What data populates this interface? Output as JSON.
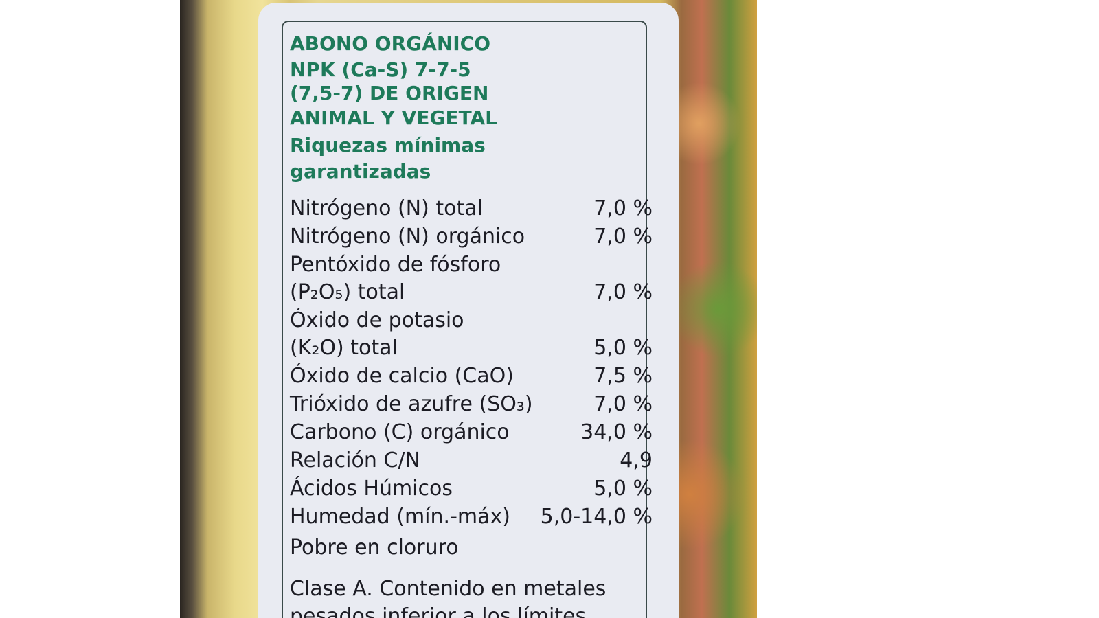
{
  "label": {
    "heading": [
      "ABONO ORGÁNICO",
      "NPK (Ca-S) 7-7-5",
      "(7,5-7) DE ORIGEN",
      "ANIMAL Y VEGETAL"
    ],
    "subheading": [
      "Riquezas mínimas",
      "garantizadas"
    ],
    "rows": [
      {
        "name": [
          "Nitrógeno (N) total"
        ],
        "value": "7,0 %"
      },
      {
        "name": [
          "Nitrógeno (N) orgánico"
        ],
        "value": "7,0 %"
      },
      {
        "name": [
          "Pentóxido de fósforo",
          "(P₂O₅) total"
        ],
        "value": "7,0 %"
      },
      {
        "name": [
          "Óxido de potasio",
          "(K₂O) total"
        ],
        "value": "5,0 %"
      },
      {
        "name": [
          "Óxido de calcio (CaO)"
        ],
        "value": "7,5 %"
      },
      {
        "name": [
          "Trióxido de azufre (SO₃)"
        ],
        "value": "7,0 %"
      },
      {
        "name": [
          "Carbono (C) orgánico"
        ],
        "value": "34,0 %"
      },
      {
        "name": [
          "Relación C/N"
        ],
        "value": "4,9"
      },
      {
        "name": [
          "Ácidos Húmicos"
        ],
        "value": "5,0 %"
      },
      {
        "name": [
          "Humedad (mín.-máx)"
        ],
        "value": "5,0-14,0 %"
      }
    ],
    "note": "Pobre en cloruro",
    "footer": [
      "Clase A. Contenido en metales",
      "pesados inferior a los límites"
    ]
  }
}
